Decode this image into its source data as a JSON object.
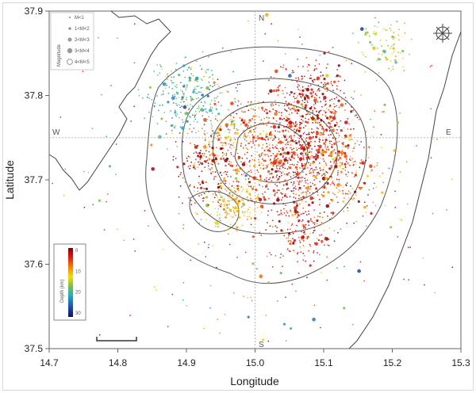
{
  "chart_data": {
    "type": "scatter",
    "xlabel": "Longitude",
    "ylabel": "Latitude",
    "xlim": [
      14.7,
      15.3
    ],
    "ylim": [
      37.5,
      37.9
    ],
    "xticks": [
      "14.7",
      "14.8",
      "14.9",
      "15.0",
      "15.1",
      "15.2",
      "15.3"
    ],
    "yticks": [
      "37.5",
      "37.6",
      "37.7",
      "37.8",
      "37.9"
    ],
    "compass_labels": {
      "n": "N",
      "s": "S",
      "w": "W",
      "e": "E"
    },
    "magnitude_legend": {
      "title": "Magnitude",
      "entries": [
        "M<1",
        "1<M<2",
        "2<M<3",
        "3<M<4",
        "4<M<5"
      ]
    },
    "depth_colorbar": {
      "label": "Depth (km)",
      "ticks": [
        "0",
        "10",
        "20",
        "30"
      ],
      "range": [
        0,
        33
      ]
    },
    "event_clusters": [
      {
        "lon": 15.07,
        "lat": 37.73,
        "spread": 0.035,
        "count": 900,
        "depth": 3
      },
      {
        "lon": 15.08,
        "lat": 37.8,
        "spread": 0.022,
        "count": 220,
        "depth": 3
      },
      {
        "lon": 14.98,
        "lat": 37.74,
        "spread": 0.03,
        "count": 300,
        "depth": 8
      },
      {
        "lon": 14.97,
        "lat": 37.67,
        "spread": 0.014,
        "count": 160,
        "depth": 12
      },
      {
        "lon": 14.9,
        "lat": 37.8,
        "spread": 0.022,
        "count": 260,
        "depth": 22
      },
      {
        "lon": 14.93,
        "lat": 37.71,
        "spread": 0.02,
        "count": 140,
        "depth": 1
      },
      {
        "lon": 15.07,
        "lat": 37.64,
        "spread": 0.02,
        "count": 150,
        "depth": 4
      },
      {
        "lon": 15.19,
        "lat": 37.86,
        "spread": 0.015,
        "count": 80,
        "depth": 17
      },
      {
        "lon": 15.13,
        "lat": 37.71,
        "spread": 0.03,
        "count": 150,
        "depth": 10
      },
      {
        "lon": 15.0,
        "lat": 37.7,
        "spread": 0.12,
        "count": 350,
        "depth": -1
      }
    ]
  }
}
